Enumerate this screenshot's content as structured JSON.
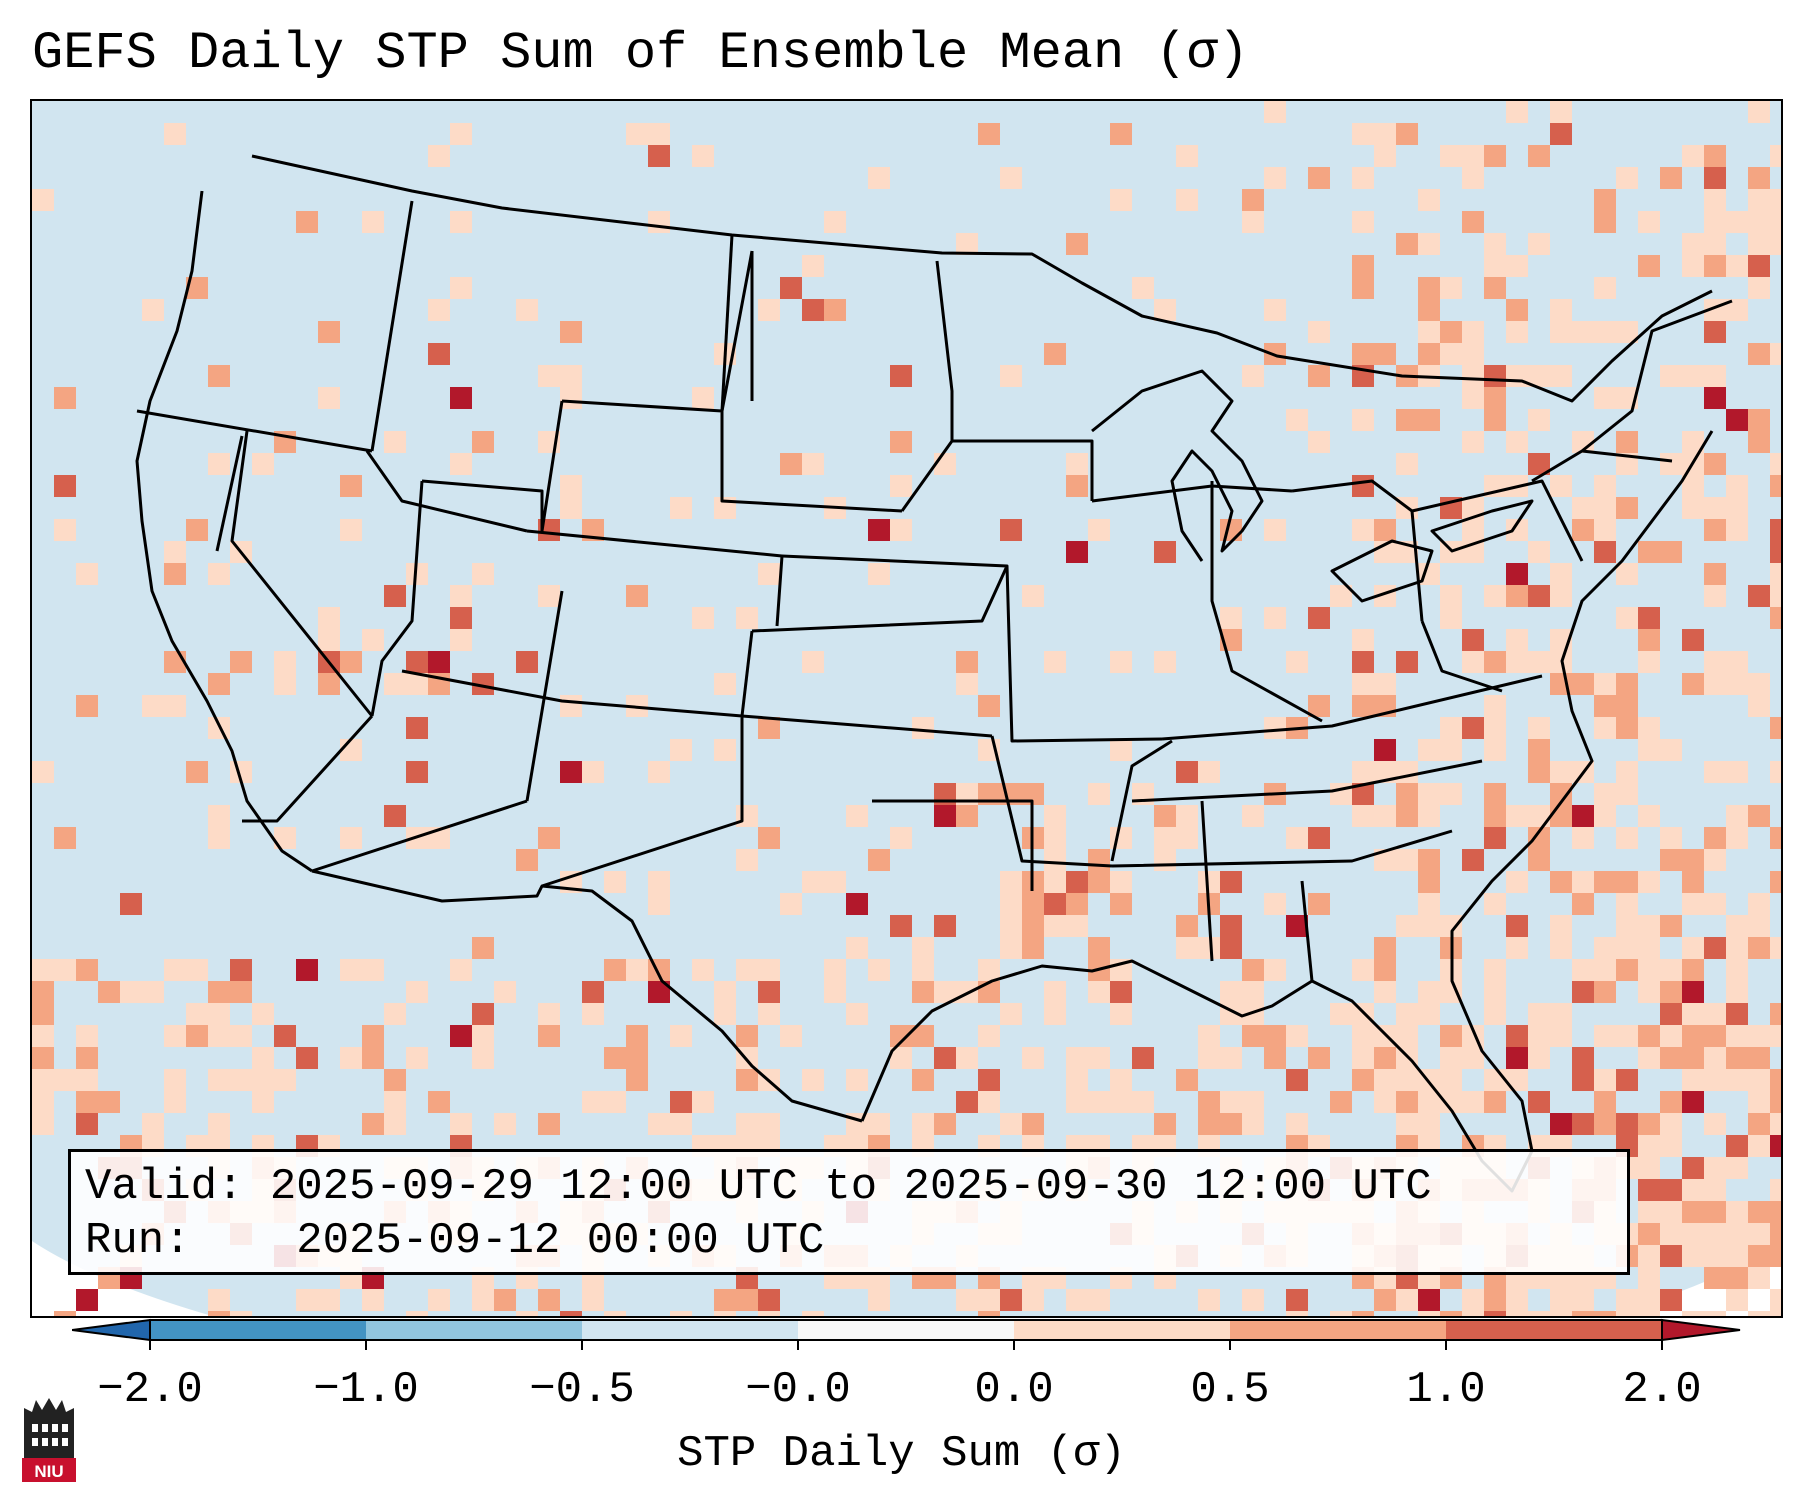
{
  "title": "GEFS Daily STP Sum of Ensemble Mean (σ)",
  "info_box": {
    "valid_label": "Valid:",
    "valid_value": "2025-09-29 12:00 UTC to 2025-09-30 12:00 UTC",
    "run_label": "Run:",
    "run_value": "2025-09-12 00:00 UTC"
  },
  "colorbar": {
    "label": "STP Daily Sum (σ)",
    "ticks": [
      "−2.0",
      "−1.0",
      "−0.5",
      "−0.0",
      "0.0",
      "0.5",
      "1.0",
      "2.0"
    ],
    "bins": [
      {
        "from": "below -2.0",
        "color": "#2166ac"
      },
      {
        "from": "-2.0",
        "to": "-1.0",
        "color": "#4393c3"
      },
      {
        "from": "-1.0",
        "to": "-0.5",
        "color": "#92c5de"
      },
      {
        "from": "-0.5",
        "to": "-0.0",
        "color": "#d1e5f0"
      },
      {
        "from": "-0.0",
        "to": "0.0",
        "color": "#f7f7f7"
      },
      {
        "from": "0.0",
        "to": "0.5",
        "color": "#fddbc7"
      },
      {
        "from": "0.5",
        "to": "1.0",
        "color": "#f4a582"
      },
      {
        "from": "1.0",
        "to": "2.0",
        "color": "#d6604d"
      },
      {
        "from": "above 2.0",
        "color": "#b2182b"
      }
    ]
  },
  "map": {
    "region": "Contiguous United States",
    "background_color": "#d1e5f0",
    "boundary_color": "#000000"
  },
  "logo": {
    "text": "NIU",
    "color": "#c8102e"
  }
}
